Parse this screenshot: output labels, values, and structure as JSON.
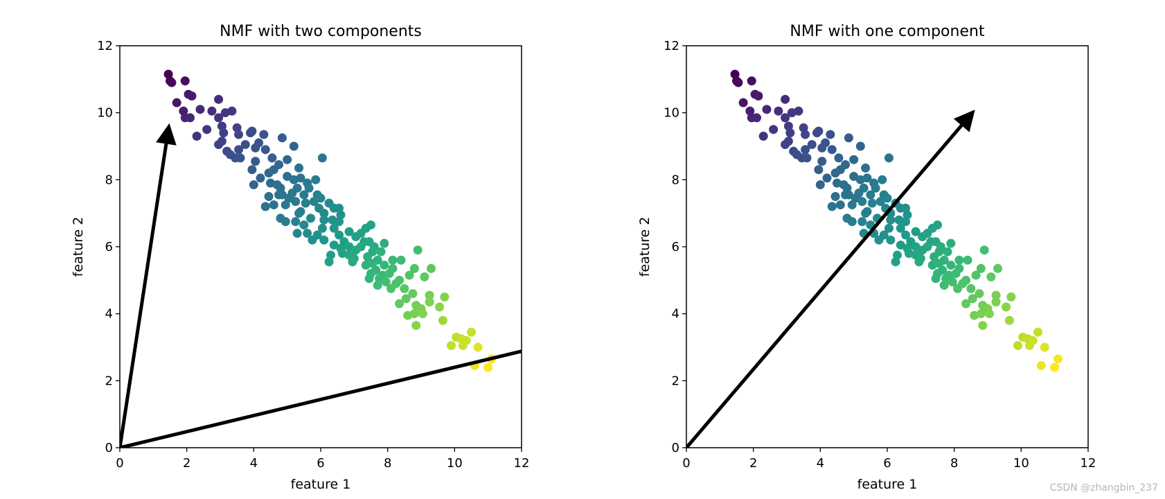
{
  "watermark": "CSDN @zhangbin_237",
  "colors": {
    "arrow": "#000000",
    "frame": "#000000",
    "colormap": "viridis"
  },
  "chart_data": [
    {
      "type": "scatter",
      "title": "NMF with two components",
      "xlabel": "feature 1",
      "ylabel": "feature 2",
      "xlim": [
        0,
        12
      ],
      "ylim": [
        0,
        12
      ],
      "xticks": [
        "0",
        "2",
        "4",
        "6",
        "8",
        "10",
        "12"
      ],
      "yticks": [
        "0",
        "2",
        "4",
        "6",
        "8",
        "10",
        "12"
      ],
      "grid": false,
      "arrows": [
        {
          "x0": 0,
          "y0": 0,
          "x1": 1.45,
          "y1": 9.5
        },
        {
          "x0": 0,
          "y0": 0,
          "x1": 12.5,
          "y1": 3.0
        }
      ]
    },
    {
      "type": "scatter",
      "title": "NMF with one component",
      "xlabel": "feature 1",
      "ylabel": "feature 2",
      "xlim": [
        0,
        12
      ],
      "ylim": [
        0,
        12
      ],
      "xticks": [
        "0",
        "2",
        "4",
        "6",
        "8",
        "10",
        "12"
      ],
      "yticks": [
        "0",
        "2",
        "4",
        "6",
        "8",
        "10",
        "12"
      ],
      "grid": false,
      "arrows": [
        {
          "x0": 0,
          "y0": 0,
          "x1": 8.5,
          "y1": 9.95
        }
      ]
    }
  ],
  "points": [
    [
      1.45,
      11.15
    ],
    [
      1.5,
      10.95
    ],
    [
      1.95,
      10.95
    ],
    [
      1.55,
      10.9
    ],
    [
      2.05,
      10.55
    ],
    [
      2.15,
      10.5
    ],
    [
      1.9,
      10.05
    ],
    [
      1.95,
      9.85
    ],
    [
      2.1,
      9.85
    ],
    [
      2.3,
      9.3
    ],
    [
      2.6,
      9.5
    ],
    [
      2.95,
      10.4
    ],
    [
      2.75,
      10.05
    ],
    [
      2.95,
      9.85
    ],
    [
      3.15,
      10.0
    ],
    [
      3.35,
      10.05
    ],
    [
      3.05,
      9.6
    ],
    [
      2.95,
      9.05
    ],
    [
      3.05,
      9.15
    ],
    [
      3.2,
      8.85
    ],
    [
      3.3,
      8.75
    ],
    [
      3.45,
      8.65
    ],
    [
      3.6,
      8.65
    ],
    [
      3.55,
      8.9
    ],
    [
      3.55,
      9.35
    ],
    [
      3.75,
      9.05
    ],
    [
      3.9,
      9.4
    ],
    [
      3.95,
      9.45
    ],
    [
      4.15,
      9.1
    ],
    [
      4.3,
      9.35
    ],
    [
      4.35,
      8.9
    ],
    [
      4.05,
      8.55
    ],
    [
      3.95,
      8.3
    ],
    [
      4.2,
      8.05
    ],
    [
      4.0,
      7.85
    ],
    [
      4.45,
      7.5
    ],
    [
      4.35,
      7.2
    ],
    [
      4.6,
      7.25
    ],
    [
      4.8,
      6.85
    ],
    [
      4.95,
      6.75
    ],
    [
      4.85,
      9.25
    ],
    [
      5.2,
      9.0
    ],
    [
      5.0,
      8.6
    ],
    [
      4.75,
      8.45
    ],
    [
      4.6,
      8.3
    ],
    [
      4.45,
      8.2
    ],
    [
      4.5,
      7.9
    ],
    [
      4.7,
      7.85
    ],
    [
      4.8,
      7.75
    ],
    [
      4.85,
      7.55
    ],
    [
      5.05,
      7.45
    ],
    [
      5.0,
      8.1
    ],
    [
      5.2,
      8.0
    ],
    [
      5.35,
      8.35
    ],
    [
      5.4,
      8.05
    ],
    [
      5.3,
      7.75
    ],
    [
      5.15,
      7.6
    ],
    [
      5.25,
      7.35
    ],
    [
      5.5,
      7.55
    ],
    [
      5.6,
      7.9
    ],
    [
      5.55,
      7.3
    ],
    [
      5.4,
      7.05
    ],
    [
      5.25,
      6.75
    ],
    [
      5.5,
      6.65
    ],
    [
      5.7,
      6.85
    ],
    [
      5.8,
      7.35
    ],
    [
      5.9,
      7.55
    ],
    [
      5.85,
      8.0
    ],
    [
      6.05,
      8.65
    ],
    [
      5.95,
      7.15
    ],
    [
      6.1,
      7.0
    ],
    [
      6.25,
      7.3
    ],
    [
      6.4,
      7.15
    ],
    [
      6.1,
      6.8
    ],
    [
      6.05,
      6.55
    ],
    [
      5.9,
      6.35
    ],
    [
      5.75,
      6.2
    ],
    [
      5.3,
      6.4
    ],
    [
      5.35,
      7.0
    ],
    [
      4.95,
      7.25
    ],
    [
      4.75,
      7.55
    ],
    [
      6.35,
      6.8
    ],
    [
      6.6,
      6.95
    ],
    [
      6.55,
      7.15
    ],
    [
      6.55,
      6.75
    ],
    [
      6.4,
      6.55
    ],
    [
      6.55,
      6.35
    ],
    [
      6.7,
      6.15
    ],
    [
      6.85,
      6.0
    ],
    [
      6.6,
      5.95
    ],
    [
      6.4,
      6.05
    ],
    [
      6.3,
      5.75
    ],
    [
      6.25,
      5.55
    ],
    [
      6.65,
      5.8
    ],
    [
      7.0,
      5.65
    ],
    [
      6.85,
      5.75
    ],
    [
      7.05,
      5.9
    ],
    [
      7.2,
      6.0
    ],
    [
      7.3,
      6.15
    ],
    [
      7.2,
      6.4
    ],
    [
      7.35,
      6.55
    ],
    [
      7.5,
      6.65
    ],
    [
      7.45,
      6.15
    ],
    [
      7.55,
      5.85
    ],
    [
      7.4,
      5.7
    ],
    [
      7.35,
      5.45
    ],
    [
      7.55,
      5.5
    ],
    [
      7.7,
      5.6
    ],
    [
      7.8,
      5.85
    ],
    [
      7.65,
      5.3
    ],
    [
      7.5,
      5.2
    ],
    [
      7.85,
      5.15
    ],
    [
      7.9,
      5.45
    ],
    [
      8.05,
      5.2
    ],
    [
      8.15,
      5.35
    ],
    [
      7.95,
      4.95
    ],
    [
      7.7,
      4.85
    ],
    [
      8.1,
      4.75
    ],
    [
      7.9,
      6.1
    ],
    [
      8.15,
      5.6
    ],
    [
      8.4,
      5.6
    ],
    [
      8.35,
      5.0
    ],
    [
      8.5,
      4.75
    ],
    [
      8.65,
      5.15
    ],
    [
      8.8,
      5.35
    ],
    [
      8.9,
      5.9
    ],
    [
      8.75,
      4.6
    ],
    [
      8.55,
      4.45
    ],
    [
      8.35,
      4.3
    ],
    [
      8.6,
      3.95
    ],
    [
      8.8,
      4.0
    ],
    [
      8.85,
      4.25
    ],
    [
      9.0,
      4.15
    ],
    [
      9.05,
      4.0
    ],
    [
      9.25,
      4.35
    ],
    [
      9.25,
      4.55
    ],
    [
      8.85,
      3.65
    ],
    [
      9.1,
      5.1
    ],
    [
      9.3,
      5.35
    ],
    [
      9.7,
      4.5
    ],
    [
      9.55,
      4.2
    ],
    [
      9.65,
      3.8
    ],
    [
      9.9,
      3.05
    ],
    [
      10.05,
      3.3
    ],
    [
      10.25,
      3.05
    ],
    [
      10.2,
      3.25
    ],
    [
      10.35,
      3.2
    ],
    [
      10.5,
      3.45
    ],
    [
      10.7,
      3.0
    ],
    [
      10.6,
      2.45
    ],
    [
      11.0,
      2.4
    ],
    [
      11.1,
      2.65
    ],
    [
      1.7,
      10.3
    ],
    [
      2.4,
      10.1
    ],
    [
      3.1,
      9.4
    ],
    [
      3.5,
      9.55
    ],
    [
      4.05,
      8.95
    ],
    [
      4.55,
      8.65
    ],
    [
      5.65,
      7.75
    ],
    [
      6.0,
      7.45
    ],
    [
      6.85,
      6.45
    ],
    [
      7.05,
      6.3
    ],
    [
      7.6,
      6.0
    ],
    [
      7.75,
      5.05
    ],
    [
      8.25,
      4.9
    ],
    [
      7.45,
      5.05
    ],
    [
      6.95,
      5.55
    ],
    [
      6.1,
      6.2
    ],
    [
      5.6,
      6.4
    ]
  ]
}
